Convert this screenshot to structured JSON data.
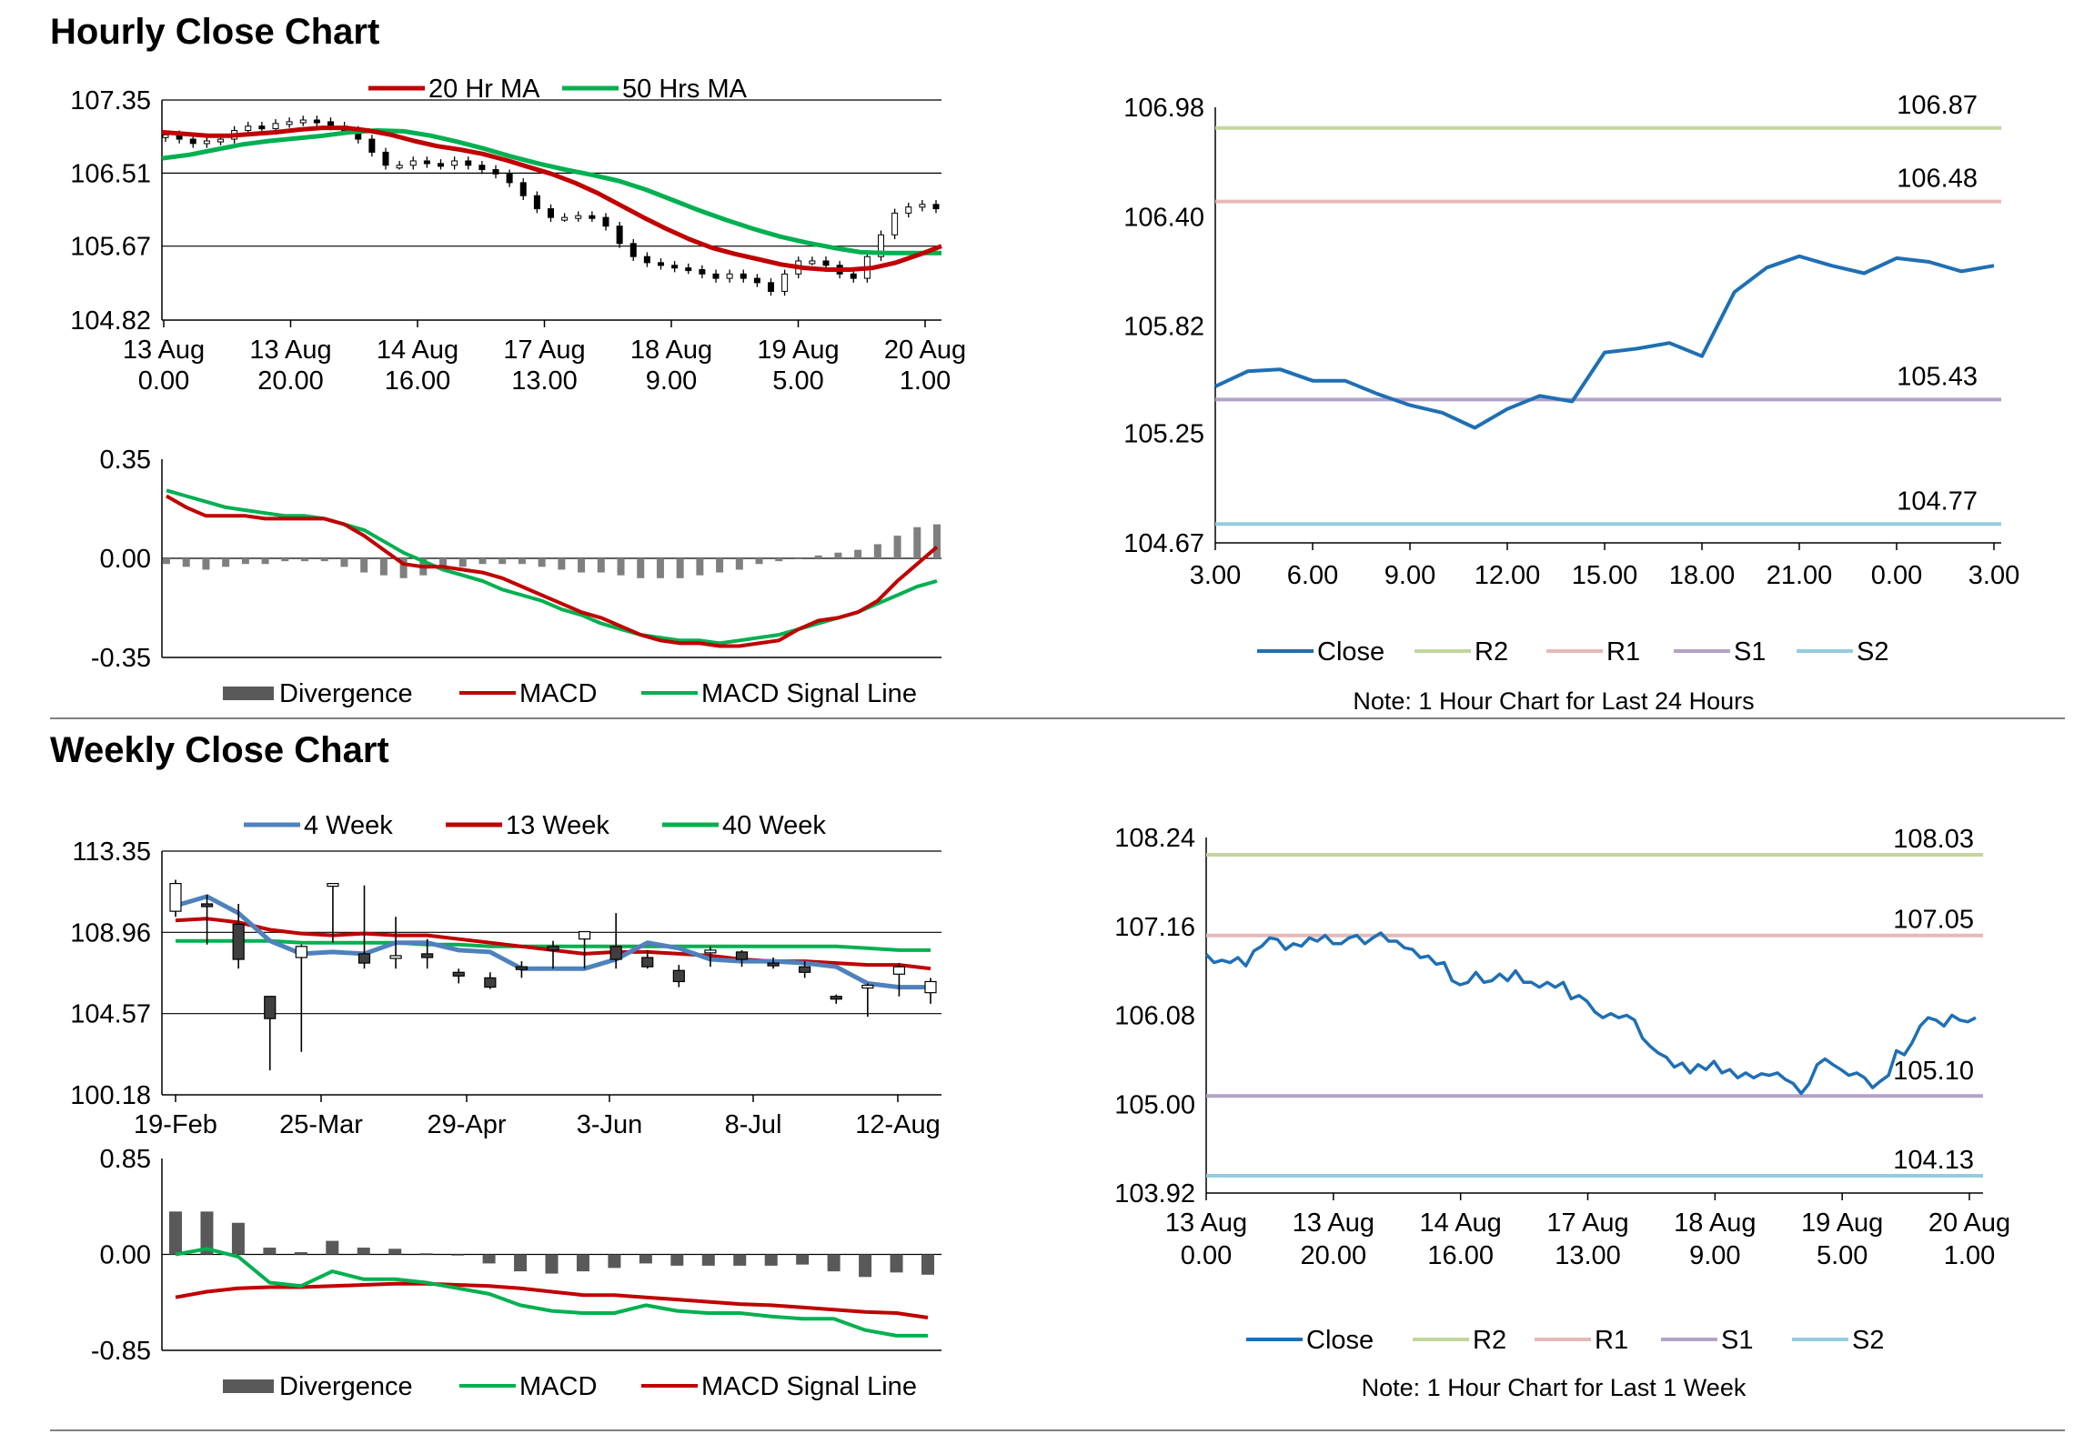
{
  "sections": {
    "hourly_title": "Hourly Close Chart",
    "weekly_title": "Weekly Close Chart"
  },
  "colors": {
    "ma20": "#c00000",
    "ma50": "#00b050",
    "close": "#1f6fb4",
    "r2": "#c3d69b",
    "r1": "#e6b9b8",
    "s1": "#b3a2c7",
    "s2": "#93cddd",
    "divergence": "#595959",
    "ma4": "#4f81bd"
  },
  "chart_data": [
    {
      "id": "hourly_price",
      "type": "candlestick",
      "title": "Hourly Close Chart",
      "ylim": [
        104.82,
        107.35
      ],
      "yticks": [
        "107.35",
        "106.51",
        "105.67",
        "104.82"
      ],
      "xticks": [
        [
          "13 Aug",
          "0.00"
        ],
        [
          "13 Aug",
          "20.00"
        ],
        [
          "14 Aug",
          "16.00"
        ],
        [
          "17 Aug",
          "13.00"
        ],
        [
          "18 Aug",
          "9.00"
        ],
        [
          "19 Aug",
          "5.00"
        ],
        [
          "20 Aug",
          "1.00"
        ]
      ],
      "legend": [
        "20 Hr MA",
        "50 Hrs MA"
      ],
      "close": [
        106.95,
        106.9,
        106.85,
        106.88,
        106.9,
        107.0,
        107.05,
        107.02,
        107.08,
        107.1,
        107.12,
        107.1,
        107.05,
        107.0,
        106.9,
        106.75,
        106.6,
        106.6,
        106.65,
        106.62,
        106.6,
        106.65,
        106.6,
        106.55,
        106.5,
        106.4,
        106.25,
        106.1,
        106.0,
        106.0,
        106.02,
        106.0,
        105.9,
        105.7,
        105.55,
        105.48,
        105.45,
        105.42,
        105.4,
        105.35,
        105.3,
        105.35,
        105.3,
        105.25,
        105.15,
        105.35,
        105.5,
        105.5,
        105.45,
        105.35,
        105.3,
        105.55,
        105.8,
        106.05,
        106.12,
        106.15,
        106.1
      ],
      "ma20": [
        106.98,
        106.96,
        106.94,
        106.94,
        106.96,
        106.98,
        107.01,
        107.03,
        107.03,
        107.0,
        106.95,
        106.88,
        106.82,
        106.78,
        106.73,
        106.66,
        106.58,
        106.5,
        106.4,
        106.28,
        106.14,
        106.0,
        105.87,
        105.75,
        105.65,
        105.58,
        105.52,
        105.46,
        105.42,
        105.4,
        105.4,
        105.42,
        105.48,
        105.57,
        105.67
      ],
      "ma50": [
        106.68,
        106.72,
        106.78,
        106.84,
        106.88,
        106.91,
        106.94,
        106.98,
        107.0,
        106.99,
        106.94,
        106.87,
        106.79,
        106.7,
        106.62,
        106.55,
        106.49,
        106.42,
        106.32,
        106.2,
        106.08,
        105.97,
        105.87,
        105.78,
        105.71,
        105.65,
        105.6,
        105.59,
        105.59,
        105.59
      ]
    },
    {
      "id": "hourly_macd",
      "type": "line",
      "ylim": [
        -0.35,
        0.35
      ],
      "yticks": [
        "0.35",
        "0.00",
        "-0.35"
      ],
      "legend": [
        "Divergence",
        "MACD",
        "MACD Signal Line"
      ],
      "macd": [
        0.22,
        0.18,
        0.15,
        0.15,
        0.15,
        0.14,
        0.14,
        0.14,
        0.14,
        0.12,
        0.08,
        0.03,
        -0.02,
        -0.03,
        -0.03,
        -0.04,
        -0.05,
        -0.07,
        -0.1,
        -0.13,
        -0.16,
        -0.19,
        -0.21,
        -0.24,
        -0.27,
        -0.29,
        -0.3,
        -0.3,
        -0.31,
        -0.31,
        -0.3,
        -0.29,
        -0.25,
        -0.22,
        -0.21,
        -0.19,
        -0.15,
        -0.08,
        -0.02,
        0.04
      ],
      "signal": [
        0.24,
        0.22,
        0.2,
        0.18,
        0.17,
        0.16,
        0.15,
        0.15,
        0.14,
        0.12,
        0.1,
        0.06,
        0.02,
        -0.01,
        -0.04,
        -0.06,
        -0.08,
        -0.11,
        -0.13,
        -0.15,
        -0.18,
        -0.2,
        -0.23,
        -0.25,
        -0.27,
        -0.28,
        -0.29,
        -0.29,
        -0.3,
        -0.29,
        -0.28,
        -0.27,
        -0.25,
        -0.23,
        -0.21,
        -0.19,
        -0.16,
        -0.13,
        -0.1,
        -0.08
      ],
      "divergence": [
        -0.02,
        -0.03,
        -0.04,
        -0.03,
        -0.02,
        -0.02,
        -0.01,
        -0.01,
        -0.01,
        -0.03,
        -0.05,
        -0.06,
        -0.07,
        -0.06,
        -0.04,
        -0.03,
        -0.02,
        -0.02,
        -0.02,
        -0.03,
        -0.04,
        -0.05,
        -0.05,
        -0.06,
        -0.07,
        -0.07,
        -0.07,
        -0.06,
        -0.05,
        -0.04,
        -0.02,
        -0.01,
        0.0,
        0.01,
        0.02,
        0.03,
        0.05,
        0.08,
        0.11,
        0.12
      ]
    },
    {
      "id": "hourly_close_24h",
      "type": "line",
      "ylim": [
        104.67,
        106.98
      ],
      "yticks": [
        "106.98",
        "106.40",
        "105.82",
        "105.25",
        "104.67"
      ],
      "xticks": [
        "3.00",
        "6.00",
        "9.00",
        "12.00",
        "15.00",
        "18.00",
        "21.00",
        "0.00",
        "3.00"
      ],
      "close": [
        105.5,
        105.58,
        105.59,
        105.53,
        105.53,
        105.46,
        105.4,
        105.36,
        105.28,
        105.38,
        105.45,
        105.42,
        105.68,
        105.7,
        105.73,
        105.66,
        106.0,
        106.13,
        106.19,
        106.14,
        106.1,
        106.18,
        106.16,
        106.11,
        106.14
      ],
      "levels": {
        "R2": 106.87,
        "R1": 106.48,
        "S1": 105.43,
        "S2": 104.77
      },
      "level_labels": {
        "R2": "106.87",
        "R1": "106.48",
        "S1": "105.43",
        "S2": "104.77"
      },
      "legend": [
        "Close",
        "R2",
        "R1",
        "S1",
        "S2"
      ],
      "note": "Note: 1 Hour Chart for Last 24 Hours"
    },
    {
      "id": "weekly_price",
      "type": "candlestick",
      "title": "Weekly Close Chart",
      "ylim": [
        100.18,
        113.35
      ],
      "yticks": [
        "113.35",
        "108.96",
        "104.57",
        "100.18"
      ],
      "xticks": [
        "19-Feb",
        "25-Mar",
        "29-Apr",
        "3-Jun",
        "8-Jul",
        "12-Aug"
      ],
      "legend": [
        "4 Week",
        "13 Week",
        "40 Week"
      ],
      "candles": [
        [
          110.1,
          111.6,
          109.8,
          111.8
        ],
        [
          110.5,
          110.4,
          108.3,
          111.0
        ],
        [
          109.4,
          107.5,
          107.0,
          110.5
        ],
        [
          105.5,
          104.3,
          101.5,
          105.5
        ],
        [
          107.6,
          108.2,
          102.5,
          108.3
        ],
        [
          111.5,
          111.6,
          108.4,
          111.6
        ],
        [
          107.8,
          107.3,
          107.0,
          111.5
        ],
        [
          107.6,
          107.7,
          107.0,
          109.8
        ],
        [
          107.8,
          107.6,
          107.0,
          108.6
        ],
        [
          106.8,
          106.6,
          106.2,
          107.0
        ],
        [
          106.5,
          106.0,
          105.9,
          106.8
        ],
        [
          107.1,
          107.0,
          106.5,
          107.4
        ],
        [
          108.2,
          108.0,
          107.0,
          108.5
        ],
        [
          108.6,
          109.0,
          107.0,
          109.0
        ],
        [
          108.2,
          107.5,
          107.0,
          110.0
        ],
        [
          107.6,
          107.1,
          107.0,
          108.0
        ],
        [
          106.9,
          106.3,
          106.0,
          107.2
        ],
        [
          107.9,
          108.0,
          107.1,
          108.2
        ],
        [
          107.9,
          107.5,
          107.1,
          108.0
        ],
        [
          107.3,
          107.2,
          107.0,
          107.6
        ],
        [
          107.1,
          106.8,
          106.5,
          107.4
        ],
        [
          105.5,
          105.4,
          105.1,
          105.6
        ],
        [
          106.1,
          106.1,
          104.4,
          106.2
        ],
        [
          106.7,
          107.1,
          105.5,
          107.3
        ],
        [
          105.7,
          106.3,
          105.1,
          106.5
        ]
      ],
      "ma4": [
        110.4,
        110.9,
        110.0,
        108.5,
        107.8,
        107.9,
        107.8,
        108.4,
        108.4,
        108.0,
        107.9,
        107.0,
        107.0,
        107.0,
        107.5,
        108.4,
        108.1,
        107.5,
        107.4,
        107.4,
        107.3,
        107.1,
        106.2,
        106.0,
        106.0
      ],
      "ma13": [
        109.6,
        109.7,
        109.5,
        109.1,
        108.9,
        108.8,
        108.9,
        108.8,
        108.8,
        108.6,
        108.4,
        108.2,
        108.0,
        107.8,
        107.9,
        107.9,
        107.8,
        107.7,
        107.5,
        107.4,
        107.4,
        107.3,
        107.2,
        107.2,
        107.0
      ],
      "ma40": [
        108.5,
        108.5,
        108.5,
        108.5,
        108.4,
        108.4,
        108.4,
        108.4,
        108.3,
        108.3,
        108.2,
        108.2,
        108.2,
        108.2,
        108.2,
        108.2,
        108.2,
        108.2,
        108.2,
        108.2,
        108.2,
        108.2,
        108.1,
        108.0,
        108.0
      ]
    },
    {
      "id": "weekly_macd",
      "type": "line",
      "ylim": [
        -0.85,
        0.85
      ],
      "yticks": [
        "0.85",
        "0.00",
        "-0.85"
      ],
      "legend": [
        "Divergence",
        "MACD",
        "MACD Signal Line"
      ],
      "divergence": [
        0.38,
        0.38,
        0.28,
        0.06,
        0.02,
        0.12,
        0.06,
        0.05,
        0.01,
        -0.01,
        -0.08,
        -0.15,
        -0.17,
        -0.15,
        -0.12,
        -0.08,
        -0.1,
        -0.1,
        -0.1,
        -0.1,
        -0.09,
        -0.15,
        -0.2,
        -0.16,
        -0.18
      ],
      "macd": [
        0.0,
        0.05,
        -0.02,
        -0.25,
        -0.28,
        -0.15,
        -0.22,
        -0.22,
        -0.25,
        -0.3,
        -0.35,
        -0.45,
        -0.5,
        -0.52,
        -0.52,
        -0.45,
        -0.5,
        -0.52,
        -0.52,
        -0.55,
        -0.57,
        -0.57,
        -0.67,
        -0.72,
        -0.72
      ],
      "signal": [
        -0.38,
        -0.33,
        -0.3,
        -0.29,
        -0.29,
        -0.28,
        -0.27,
        -0.26,
        -0.26,
        -0.27,
        -0.28,
        -0.3,
        -0.33,
        -0.36,
        -0.36,
        -0.38,
        -0.4,
        -0.42,
        -0.44,
        -0.45,
        -0.47,
        -0.49,
        -0.51,
        -0.52,
        -0.56
      ]
    },
    {
      "id": "weekly_close_1w",
      "type": "line",
      "ylim": [
        103.92,
        108.24
      ],
      "yticks": [
        "108.24",
        "107.16",
        "106.08",
        "105.00",
        "103.92"
      ],
      "xticks": [
        [
          "13 Aug",
          "0.00"
        ],
        [
          "13 Aug",
          "20.00"
        ],
        [
          "14 Aug",
          "16.00"
        ],
        [
          "17 Aug",
          "13.00"
        ],
        [
          "18 Aug",
          "9.00"
        ],
        [
          "19 Aug",
          "5.00"
        ],
        [
          "20 Aug",
          "1.00"
        ]
      ],
      "close": [
        106.82,
        106.72,
        106.75,
        106.72,
        106.78,
        106.68,
        106.86,
        106.92,
        107.02,
        107.0,
        106.88,
        106.95,
        106.92,
        107.02,
        106.98,
        107.05,
        106.95,
        106.95,
        107.02,
        107.05,
        106.95,
        107.02,
        107.08,
        106.98,
        106.98,
        106.9,
        106.88,
        106.78,
        106.8,
        106.7,
        106.72,
        106.5,
        106.45,
        106.48,
        106.6,
        106.48,
        106.5,
        106.58,
        106.5,
        106.62,
        106.48,
        106.48,
        106.42,
        106.48,
        106.42,
        106.48,
        106.28,
        106.32,
        106.25,
        106.12,
        106.05,
        106.1,
        106.05,
        106.08,
        106.02,
        105.8,
        105.7,
        105.62,
        105.57,
        105.45,
        105.5,
        105.38,
        105.48,
        105.42,
        105.52,
        105.38,
        105.42,
        105.32,
        105.38,
        105.32,
        105.37,
        105.35,
        105.38,
        105.3,
        105.25,
        105.13,
        105.25,
        105.48,
        105.55,
        105.48,
        105.42,
        105.35,
        105.38,
        105.32,
        105.2,
        105.28,
        105.35,
        105.65,
        105.6,
        105.75,
        105.95,
        106.05,
        106.02,
        105.95,
        106.08,
        106.02,
        106.0,
        106.05
      ],
      "levels": {
        "R2": 108.03,
        "R1": 107.05,
        "S1": 105.1,
        "S2": 104.13
      },
      "level_labels": {
        "R2": "108.03",
        "R1": "107.05",
        "S1": "105.10",
        "S2": "104.13"
      },
      "legend": [
        "Close",
        "R2",
        "R1",
        "S1",
        "S2"
      ],
      "note": "Note: 1 Hour Chart for Last 1 Week"
    }
  ]
}
